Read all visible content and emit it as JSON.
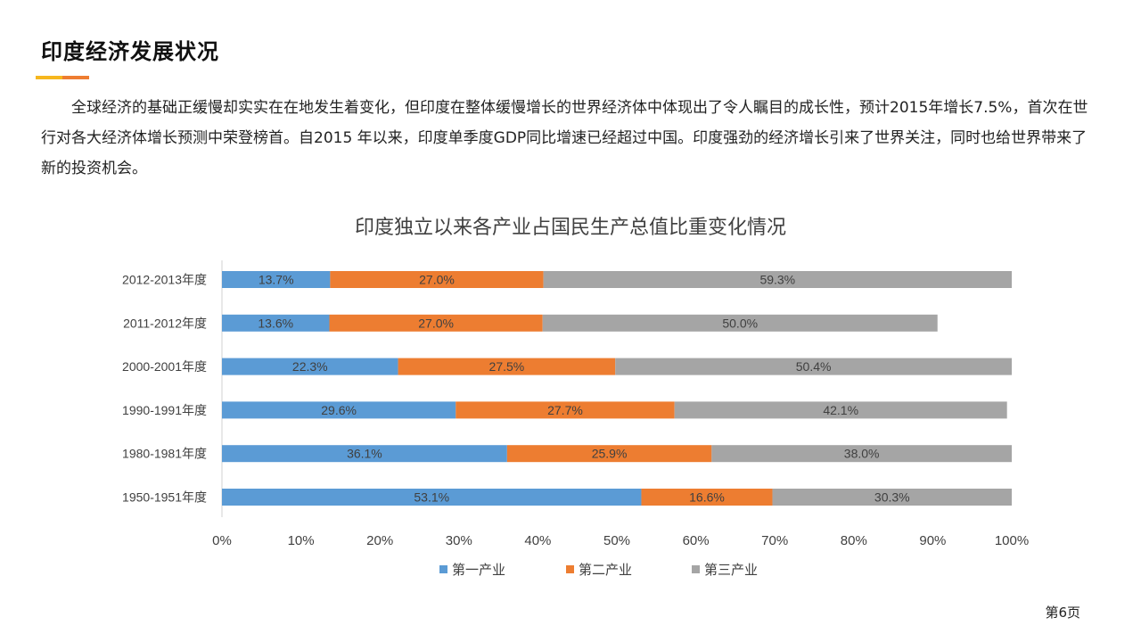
{
  "header": {
    "title": "印度经济发展状况",
    "intro": "全球经济的基础正缓慢却实实在在地发生着变化，但印度在整体缓慢增长的世界经济体中体现出了令人瞩目的成长性，预计2015年增长7.5%，首次在世行对各大经济体增长预测中荣登榜首。自2015 年以来，印度单季度GDP同比增速已经超过中国。印度强劲的经济增长引来了世界关注，同时也给世界带来了新的投资机会。"
  },
  "footer": {
    "page_number": "第6页"
  },
  "colors": {
    "accent_yellow": "#f6b71e",
    "accent_orange": "#ee7d31"
  },
  "chart_data": {
    "type": "bar",
    "orientation": "horizontal",
    "stacked": true,
    "title": "印度独立以来各产业占国民生产总值比重变化情况",
    "categories": [
      "2012-2013年度",
      "2011-2012年度",
      "2000-2001年度",
      "1990-1991年度",
      "1980-1981年度",
      "1950-1951年度"
    ],
    "series": [
      {
        "name": "第一产业",
        "color": "#5b9bd5",
        "values": [
          13.7,
          13.6,
          22.3,
          29.6,
          36.1,
          53.1
        ]
      },
      {
        "name": "第二产业",
        "color": "#ed7d31",
        "values": [
          27.0,
          27.0,
          27.5,
          27.7,
          25.9,
          16.6
        ]
      },
      {
        "name": "第三产业",
        "color": "#a5a5a5",
        "values": [
          59.3,
          50.0,
          50.4,
          42.1,
          38.0,
          30.3
        ]
      }
    ],
    "value_labels": [
      [
        "13.7%",
        "13.6%",
        "22.3%",
        "29.6%",
        "36.1%",
        "53.1%"
      ],
      [
        "27.0%",
        "27.0%",
        "27.5%",
        "27.7%",
        "25.9%",
        "16.6%"
      ],
      [
        "59.3%",
        "50.0%",
        "50.4%",
        "42.1%",
        "38.0%",
        "30.3%"
      ]
    ],
    "xlim": [
      0,
      100
    ],
    "xticks": [
      "0%",
      "10%",
      "20%",
      "30%",
      "40%",
      "50%",
      "60%",
      "70%",
      "80%",
      "90%",
      "100%"
    ],
    "legend_position": "bottom",
    "grid": false
  }
}
